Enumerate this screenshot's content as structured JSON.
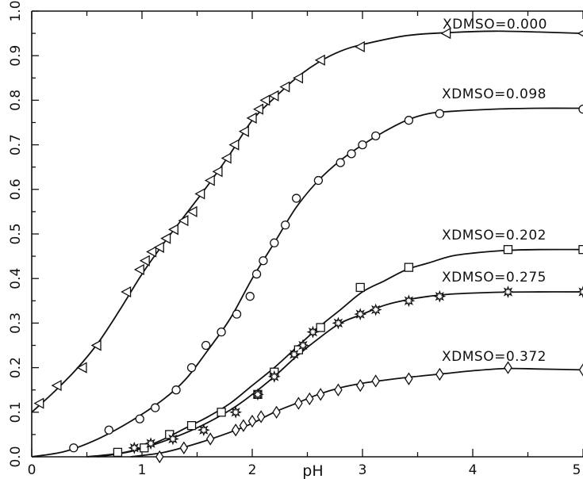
{
  "chart_data": {
    "type": "scatter",
    "title": "",
    "xlabel": "pH",
    "ylabel": "",
    "xlim": [
      0,
      5
    ],
    "ylim": [
      0,
      1.0
    ],
    "xticks": [
      0,
      1,
      2,
      3,
      4,
      5
    ],
    "xtick_labels": [
      "0",
      "1",
      "2",
      "3",
      "4",
      "5"
    ],
    "yticks": [
      0.0,
      0.1,
      0.2,
      0.3,
      0.4,
      0.5,
      0.6,
      0.7,
      0.8,
      0.9,
      1.0
    ],
    "ytick_labels": [
      "0.0",
      "0.1",
      "0.2",
      "0.3",
      "0.4",
      "0.5",
      "0.6",
      "0.7",
      "0.8",
      "0.9",
      "1.0"
    ],
    "grid": false,
    "series": [
      {
        "label": "XDMSO=0.000",
        "marker": "triangle-left",
        "points": [
          [
            0.07,
            0.12
          ],
          [
            0.23,
            0.16
          ],
          [
            0.46,
            0.2
          ],
          [
            0.59,
            0.25
          ],
          [
            0.86,
            0.37
          ],
          [
            0.98,
            0.42
          ],
          [
            1.03,
            0.44
          ],
          [
            1.09,
            0.46
          ],
          [
            1.16,
            0.47
          ],
          [
            1.22,
            0.49
          ],
          [
            1.29,
            0.51
          ],
          [
            1.38,
            0.53
          ],
          [
            1.46,
            0.55
          ],
          [
            1.53,
            0.59
          ],
          [
            1.62,
            0.62
          ],
          [
            1.69,
            0.64
          ],
          [
            1.77,
            0.67
          ],
          [
            1.84,
            0.7
          ],
          [
            1.93,
            0.73
          ],
          [
            2.0,
            0.76
          ],
          [
            2.06,
            0.78
          ],
          [
            2.12,
            0.8
          ],
          [
            2.2,
            0.81
          ],
          [
            2.3,
            0.83
          ],
          [
            2.42,
            0.85
          ],
          [
            2.62,
            0.89
          ],
          [
            2.98,
            0.92
          ],
          [
            3.76,
            0.95
          ],
          [
            5.0,
            0.95
          ]
        ],
        "curve": [
          [
            0.0,
            0.1
          ],
          [
            0.2,
            0.145
          ],
          [
            0.4,
            0.195
          ],
          [
            0.6,
            0.255
          ],
          [
            0.8,
            0.33
          ],
          [
            1.0,
            0.41
          ],
          [
            1.2,
            0.48
          ],
          [
            1.4,
            0.545
          ],
          [
            1.6,
            0.61
          ],
          [
            1.8,
            0.68
          ],
          [
            2.0,
            0.755
          ],
          [
            2.2,
            0.805
          ],
          [
            2.4,
            0.85
          ],
          [
            2.6,
            0.885
          ],
          [
            2.8,
            0.91
          ],
          [
            3.0,
            0.925
          ],
          [
            3.4,
            0.945
          ],
          [
            3.8,
            0.952
          ],
          [
            4.2,
            0.955
          ],
          [
            4.6,
            0.953
          ],
          [
            5.0,
            0.95
          ]
        ]
      },
      {
        "label": "XDMSO=0.098",
        "marker": "circle",
        "points": [
          [
            0.38,
            0.02
          ],
          [
            0.7,
            0.06
          ],
          [
            0.98,
            0.085
          ],
          [
            1.12,
            0.11
          ],
          [
            1.31,
            0.15
          ],
          [
            1.45,
            0.2
          ],
          [
            1.58,
            0.25
          ],
          [
            1.72,
            0.28
          ],
          [
            1.86,
            0.32
          ],
          [
            1.98,
            0.36
          ],
          [
            2.04,
            0.41
          ],
          [
            2.1,
            0.44
          ],
          [
            2.2,
            0.48
          ],
          [
            2.3,
            0.52
          ],
          [
            2.4,
            0.58
          ],
          [
            2.6,
            0.62
          ],
          [
            2.8,
            0.66
          ],
          [
            2.9,
            0.68
          ],
          [
            3.0,
            0.7
          ],
          [
            3.12,
            0.72
          ],
          [
            3.42,
            0.755
          ],
          [
            3.7,
            0.77
          ],
          [
            5.0,
            0.78
          ]
        ],
        "curve": [
          [
            0.0,
            0.0
          ],
          [
            0.3,
            0.012
          ],
          [
            0.6,
            0.04
          ],
          [
            0.9,
            0.08
          ],
          [
            1.2,
            0.13
          ],
          [
            1.4,
            0.175
          ],
          [
            1.6,
            0.24
          ],
          [
            1.8,
            0.31
          ],
          [
            2.0,
            0.4
          ],
          [
            2.2,
            0.48
          ],
          [
            2.4,
            0.56
          ],
          [
            2.6,
            0.62
          ],
          [
            2.8,
            0.665
          ],
          [
            3.0,
            0.7
          ],
          [
            3.2,
            0.73
          ],
          [
            3.4,
            0.755
          ],
          [
            3.6,
            0.77
          ],
          [
            3.8,
            0.775
          ],
          [
            4.2,
            0.78
          ],
          [
            4.6,
            0.782
          ],
          [
            5.0,
            0.782
          ]
        ]
      },
      {
        "label": "XDMSO=0.202",
        "marker": "square",
        "points": [
          [
            0.78,
            0.01
          ],
          [
            1.02,
            0.02
          ],
          [
            1.25,
            0.05
          ],
          [
            1.45,
            0.07
          ],
          [
            1.72,
            0.1
          ],
          [
            2.05,
            0.14
          ],
          [
            2.2,
            0.19
          ],
          [
            2.42,
            0.24
          ],
          [
            2.62,
            0.29
          ],
          [
            2.98,
            0.38
          ],
          [
            3.42,
            0.425
          ],
          [
            4.32,
            0.465
          ],
          [
            5.0,
            0.465
          ]
        ],
        "curve": [
          [
            0.5,
            0.0
          ],
          [
            0.8,
            0.008
          ],
          [
            1.0,
            0.02
          ],
          [
            1.2,
            0.04
          ],
          [
            1.4,
            0.065
          ],
          [
            1.6,
            0.09
          ],
          [
            1.8,
            0.12
          ],
          [
            2.0,
            0.16
          ],
          [
            2.2,
            0.2
          ],
          [
            2.4,
            0.245
          ],
          [
            2.6,
            0.29
          ],
          [
            2.8,
            0.33
          ],
          [
            3.0,
            0.37
          ],
          [
            3.2,
            0.395
          ],
          [
            3.4,
            0.42
          ],
          [
            3.6,
            0.435
          ],
          [
            3.8,
            0.45
          ],
          [
            4.0,
            0.457
          ],
          [
            4.3,
            0.463
          ],
          [
            4.6,
            0.465
          ],
          [
            5.0,
            0.465
          ]
        ]
      },
      {
        "label": "XDMSO=0.275",
        "marker": "star",
        "points": [
          [
            0.93,
            0.02
          ],
          [
            1.08,
            0.03
          ],
          [
            1.28,
            0.04
          ],
          [
            1.56,
            0.06
          ],
          [
            1.85,
            0.1
          ],
          [
            2.05,
            0.14
          ],
          [
            2.2,
            0.18
          ],
          [
            2.38,
            0.23
          ],
          [
            2.46,
            0.25
          ],
          [
            2.55,
            0.28
          ],
          [
            2.78,
            0.3
          ],
          [
            2.98,
            0.32
          ],
          [
            3.12,
            0.33
          ],
          [
            3.42,
            0.35
          ],
          [
            3.7,
            0.36
          ],
          [
            4.32,
            0.37
          ],
          [
            5.0,
            0.37
          ]
        ],
        "curve": [
          [
            0.6,
            0.0
          ],
          [
            0.9,
            0.012
          ],
          [
            1.2,
            0.035
          ],
          [
            1.5,
            0.065
          ],
          [
            1.8,
            0.105
          ],
          [
            2.0,
            0.14
          ],
          [
            2.2,
            0.18
          ],
          [
            2.4,
            0.225
          ],
          [
            2.6,
            0.265
          ],
          [
            2.8,
            0.3
          ],
          [
            3.0,
            0.32
          ],
          [
            3.2,
            0.34
          ],
          [
            3.4,
            0.352
          ],
          [
            3.6,
            0.36
          ],
          [
            3.8,
            0.365
          ],
          [
            4.2,
            0.369
          ],
          [
            4.6,
            0.37
          ],
          [
            5.0,
            0.37
          ]
        ]
      },
      {
        "label": "XDMSO=0.372",
        "marker": "diamond",
        "points": [
          [
            1.16,
            0.0
          ],
          [
            1.38,
            0.02
          ],
          [
            1.62,
            0.04
          ],
          [
            1.85,
            0.06
          ],
          [
            1.92,
            0.07
          ],
          [
            2.0,
            0.08
          ],
          [
            2.08,
            0.09
          ],
          [
            2.22,
            0.1
          ],
          [
            2.42,
            0.12
          ],
          [
            2.52,
            0.13
          ],
          [
            2.62,
            0.14
          ],
          [
            2.78,
            0.15
          ],
          [
            2.98,
            0.16
          ],
          [
            3.12,
            0.17
          ],
          [
            3.42,
            0.175
          ],
          [
            3.7,
            0.185
          ],
          [
            4.32,
            0.2
          ],
          [
            5.0,
            0.195
          ]
        ],
        "curve": [
          [
            0.9,
            0.0
          ],
          [
            1.2,
            0.01
          ],
          [
            1.5,
            0.03
          ],
          [
            1.8,
            0.055
          ],
          [
            2.0,
            0.075
          ],
          [
            2.2,
            0.1
          ],
          [
            2.4,
            0.12
          ],
          [
            2.6,
            0.14
          ],
          [
            2.8,
            0.155
          ],
          [
            3.0,
            0.165
          ],
          [
            3.2,
            0.172
          ],
          [
            3.4,
            0.178
          ],
          [
            3.6,
            0.183
          ],
          [
            3.8,
            0.188
          ],
          [
            4.0,
            0.193
          ],
          [
            4.3,
            0.198
          ],
          [
            4.6,
            0.197
          ],
          [
            5.0,
            0.195
          ]
        ]
      }
    ]
  }
}
